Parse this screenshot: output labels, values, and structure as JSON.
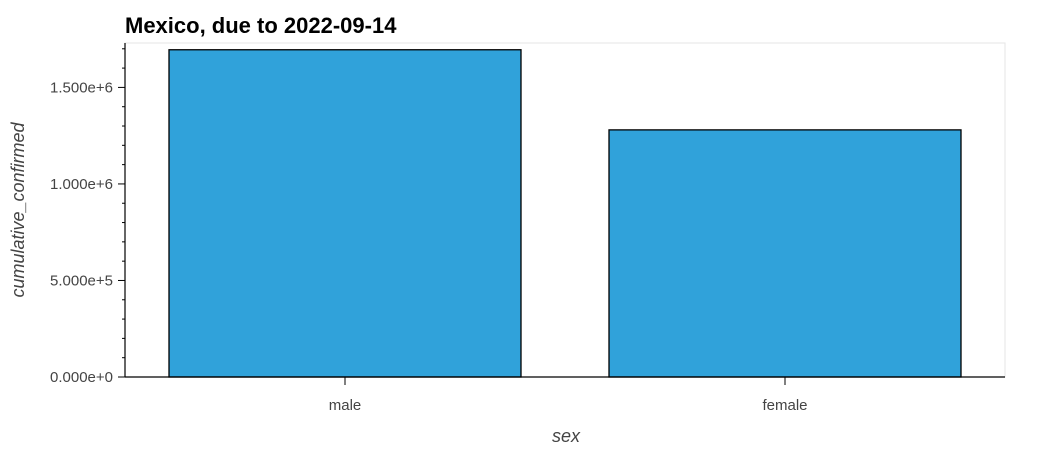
{
  "chart_data": {
    "type": "bar",
    "title": "Mexico, due to 2022-09-14",
    "xlabel": "sex",
    "ylabel": "cumulative_confirmed",
    "categories": [
      "male",
      "female"
    ],
    "values": [
      1695000,
      1280000
    ],
    "ylim": [
      0,
      1730000
    ],
    "yticks": [
      {
        "value": 0,
        "label": "0.000e+0"
      },
      {
        "value": 500000,
        "label": "5.000e+5"
      },
      {
        "value": 1000000,
        "label": "1.000e+6"
      },
      {
        "value": 1500000,
        "label": "1.500e+6"
      }
    ],
    "grid": false,
    "legend": "none",
    "colors": {
      "bar_fill": "#30a2da",
      "bar_stroke": "#000000",
      "frame": "#e5e5e5",
      "axis": "#000000"
    }
  }
}
